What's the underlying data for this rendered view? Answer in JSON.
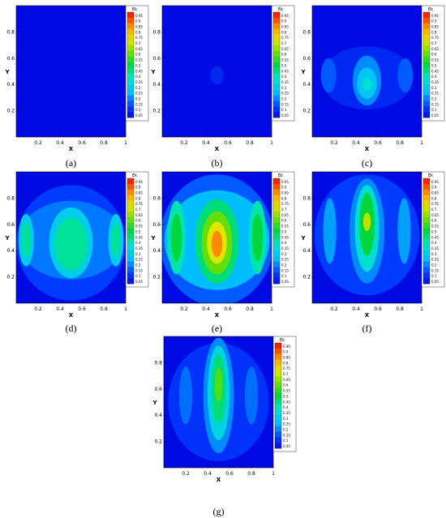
{
  "chart_data": [
    {
      "type": "heatmap",
      "caption": "(a)",
      "xlabel": "X",
      "ylabel": "Y",
      "xticks": [
        "0.2",
        "0.4",
        "0.6",
        "0.8",
        "1"
      ],
      "yticks": [
        "0.2",
        "0.4",
        "0.6",
        "0.8"
      ],
      "xlim": [
        0,
        1
      ],
      "ylim": [
        0,
        1
      ],
      "legend_title": "Ek",
      "legend_placement": "right",
      "levels": [
        "0.95",
        "0.9",
        "0.85",
        "0.8",
        "0.75",
        "0.7",
        "0.65",
        "0.6",
        "0.55",
        "0.5",
        "0.45",
        "0.4",
        "0.35",
        "0.3",
        "0.25",
        "0.2",
        "0.15",
        "0.1",
        "0.05"
      ],
      "blobs": []
    },
    {
      "type": "heatmap",
      "caption": "(b)",
      "xlabel": "X",
      "ylabel": "Y",
      "xticks": [
        "0.2",
        "0.4",
        "0.6",
        "0.8",
        "1"
      ],
      "yticks": [
        "0.2",
        "0.4",
        "0.6",
        "0.8"
      ],
      "xlim": [
        0,
        1
      ],
      "ylim": [
        0,
        1
      ],
      "legend_title": "Ek",
      "legend_placement": "right",
      "levels": [
        "0.95",
        "0.9",
        "0.85",
        "0.8",
        "0.75",
        "0.7",
        "0.65",
        "0.6",
        "0.55",
        "0.5",
        "0.45",
        "0.4",
        "0.35",
        "0.3",
        "0.25",
        "0.2",
        "0.15",
        "0.1",
        "0.05"
      ],
      "blobs": [
        {
          "x": 0.5,
          "y": 0.47,
          "rx": 0.06,
          "ry": 0.07,
          "level": 0.08
        }
      ]
    },
    {
      "type": "heatmap",
      "caption": "(c)",
      "xlabel": "X",
      "ylabel": "Y",
      "xticks": [
        "0.2",
        "0.4",
        "0.6",
        "0.8",
        "1"
      ],
      "yticks": [
        "0.2",
        "0.4",
        "0.6",
        "0.8"
      ],
      "xlim": [
        0,
        1
      ],
      "ylim": [
        0,
        1
      ],
      "legend_title": "Ek",
      "legend_placement": "right",
      "levels": [
        "0.95",
        "0.9",
        "0.85",
        "0.8",
        "0.75",
        "0.7",
        "0.65",
        "0.6",
        "0.55",
        "0.5",
        "0.45",
        "0.4",
        "0.35",
        "0.3",
        "0.25",
        "0.2",
        "0.15",
        "0.1",
        "0.05"
      ],
      "blobs": [
        {
          "x": 0.5,
          "y": 0.45,
          "rx": 0.42,
          "ry": 0.24,
          "level": 0.08
        },
        {
          "x": 0.15,
          "y": 0.47,
          "rx": 0.07,
          "ry": 0.13,
          "level": 0.15
        },
        {
          "x": 0.85,
          "y": 0.47,
          "rx": 0.07,
          "ry": 0.13,
          "level": 0.15
        },
        {
          "x": 0.5,
          "y": 0.43,
          "rx": 0.13,
          "ry": 0.19,
          "level": 0.2
        },
        {
          "x": 0.5,
          "y": 0.41,
          "rx": 0.09,
          "ry": 0.12,
          "level": 0.28
        },
        {
          "x": 0.5,
          "y": 0.4,
          "rx": 0.04,
          "ry": 0.05,
          "level": 0.36
        }
      ]
    },
    {
      "type": "heatmap",
      "caption": "(d)",
      "xlabel": "X",
      "ylabel": "Y",
      "xticks": [
        "0.2",
        "0.4",
        "0.6",
        "0.8",
        "1"
      ],
      "yticks": [
        "0.2",
        "0.4",
        "0.6",
        "0.8"
      ],
      "xlim": [
        0,
        1
      ],
      "ylim": [
        0,
        1
      ],
      "legend_title": "Ek",
      "legend_placement": "right",
      "levels": [
        "0.95",
        "0.9",
        "0.85",
        "0.8",
        "0.75",
        "0.7",
        "0.65",
        "0.6",
        "0.55",
        "0.5",
        "0.45",
        "0.4",
        "0.35",
        "0.3",
        "0.25",
        "0.2",
        "0.15",
        "0.1",
        "0.05"
      ],
      "blobs": [
        {
          "x": 0.5,
          "y": 0.46,
          "rx": 0.5,
          "ry": 0.44,
          "level": 0.12
        },
        {
          "x": 0.5,
          "y": 0.48,
          "rx": 0.48,
          "ry": 0.3,
          "level": 0.18
        },
        {
          "x": 0.09,
          "y": 0.48,
          "rx": 0.07,
          "ry": 0.2,
          "level": 0.3
        },
        {
          "x": 0.91,
          "y": 0.48,
          "rx": 0.07,
          "ry": 0.2,
          "level": 0.3
        },
        {
          "x": 0.09,
          "y": 0.48,
          "rx": 0.04,
          "ry": 0.13,
          "level": 0.42
        },
        {
          "x": 0.91,
          "y": 0.48,
          "rx": 0.04,
          "ry": 0.13,
          "level": 0.42
        },
        {
          "x": 0.5,
          "y": 0.46,
          "rx": 0.2,
          "ry": 0.27,
          "level": 0.3
        },
        {
          "x": 0.5,
          "y": 0.45,
          "rx": 0.15,
          "ry": 0.2,
          "level": 0.42
        }
      ]
    },
    {
      "type": "heatmap",
      "caption": "(e)",
      "xlabel": "X",
      "ylabel": "Y",
      "xticks": [
        "0.2",
        "0.4",
        "0.6",
        "0.8",
        "1"
      ],
      "yticks": [
        "0.2",
        "0.4",
        "0.6",
        "0.8"
      ],
      "xlim": [
        0,
        1
      ],
      "ylim": [
        0,
        1
      ],
      "legend_title": "Ek",
      "legend_placement": "right",
      "levels": [
        "0.95",
        "0.9",
        "0.85",
        "0.8",
        "0.75",
        "0.7",
        "0.65",
        "0.6",
        "0.55",
        "0.5",
        "0.45",
        "0.4",
        "0.35",
        "0.3",
        "0.25",
        "0.2",
        "0.15",
        "0.1",
        "0.05"
      ],
      "blobs": [
        {
          "x": 0.5,
          "y": 0.48,
          "rx": 0.52,
          "ry": 0.5,
          "level": 0.15
        },
        {
          "x": 0.5,
          "y": 0.48,
          "rx": 0.48,
          "ry": 0.38,
          "level": 0.25
        },
        {
          "x": 0.13,
          "y": 0.5,
          "rx": 0.08,
          "ry": 0.28,
          "level": 0.4
        },
        {
          "x": 0.87,
          "y": 0.5,
          "rx": 0.08,
          "ry": 0.28,
          "level": 0.4
        },
        {
          "x": 0.13,
          "y": 0.5,
          "rx": 0.05,
          "ry": 0.18,
          "level": 0.5
        },
        {
          "x": 0.87,
          "y": 0.5,
          "rx": 0.05,
          "ry": 0.18,
          "level": 0.5
        },
        {
          "x": 0.5,
          "y": 0.47,
          "rx": 0.2,
          "ry": 0.32,
          "level": 0.45
        },
        {
          "x": 0.5,
          "y": 0.46,
          "rx": 0.14,
          "ry": 0.24,
          "level": 0.6
        },
        {
          "x": 0.5,
          "y": 0.46,
          "rx": 0.09,
          "ry": 0.16,
          "level": 0.72
        },
        {
          "x": 0.5,
          "y": 0.45,
          "rx": 0.05,
          "ry": 0.1,
          "level": 0.85
        }
      ]
    },
    {
      "type": "heatmap",
      "caption": "(f)",
      "xlabel": "X",
      "ylabel": "Y",
      "xticks": [
        "0.2",
        "0.4",
        "0.6",
        "0.8",
        "1"
      ],
      "yticks": [
        "0.2",
        "0.4",
        "0.6",
        "0.8"
      ],
      "xlim": [
        0,
        1
      ],
      "ylim": [
        0,
        1
      ],
      "legend_title": "Ek",
      "legend_placement": "right",
      "levels": [
        "0.95",
        "0.9",
        "0.85",
        "0.8",
        "0.75",
        "0.7",
        "0.65",
        "0.6",
        "0.55",
        "0.5",
        "0.45",
        "0.4",
        "0.35",
        "0.3",
        "0.25",
        "0.2",
        "0.15",
        "0.1",
        "0.05"
      ],
      "blobs": [
        {
          "x": 0.5,
          "y": 0.52,
          "rx": 0.48,
          "ry": 0.46,
          "level": 0.12
        },
        {
          "x": 0.16,
          "y": 0.55,
          "rx": 0.06,
          "ry": 0.25,
          "level": 0.22
        },
        {
          "x": 0.84,
          "y": 0.55,
          "rx": 0.06,
          "ry": 0.25,
          "level": 0.22
        },
        {
          "x": 0.5,
          "y": 0.55,
          "rx": 0.16,
          "ry": 0.4,
          "level": 0.2
        },
        {
          "x": 0.5,
          "y": 0.57,
          "rx": 0.11,
          "ry": 0.33,
          "level": 0.35
        },
        {
          "x": 0.5,
          "y": 0.6,
          "rx": 0.07,
          "ry": 0.24,
          "level": 0.5
        },
        {
          "x": 0.5,
          "y": 0.62,
          "rx": 0.035,
          "ry": 0.07,
          "level": 0.68
        }
      ]
    },
    {
      "type": "heatmap",
      "caption": "(g)",
      "xlabel": "X",
      "ylabel": "Y",
      "xticks": [
        "0.2",
        "0.4",
        "0.6",
        "0.8",
        "1"
      ],
      "yticks": [
        "0.2",
        "0.4",
        "0.6",
        "0.8"
      ],
      "xlim": [
        0,
        1
      ],
      "ylim": [
        0,
        1
      ],
      "legend_title": "Ek",
      "legend_placement": "right",
      "levels": [
        "0.95",
        "0.9",
        "0.85",
        "0.8",
        "0.75",
        "0.7",
        "0.65",
        "0.6",
        "0.55",
        "0.5",
        "0.45",
        "0.4",
        "0.35",
        "0.3",
        "0.25",
        "0.2",
        "0.15",
        "0.1",
        "0.05"
      ],
      "blobs": [
        {
          "x": 0.5,
          "y": 0.5,
          "rx": 0.46,
          "ry": 0.45,
          "level": 0.1
        },
        {
          "x": 0.2,
          "y": 0.55,
          "rx": 0.06,
          "ry": 0.22,
          "level": 0.17
        },
        {
          "x": 0.8,
          "y": 0.55,
          "rx": 0.06,
          "ry": 0.22,
          "level": 0.17
        },
        {
          "x": 0.5,
          "y": 0.55,
          "rx": 0.14,
          "ry": 0.44,
          "level": 0.2
        },
        {
          "x": 0.5,
          "y": 0.57,
          "rx": 0.1,
          "ry": 0.36,
          "level": 0.32
        },
        {
          "x": 0.5,
          "y": 0.6,
          "rx": 0.065,
          "ry": 0.26,
          "level": 0.45
        },
        {
          "x": 0.5,
          "y": 0.63,
          "rx": 0.035,
          "ry": 0.13,
          "level": 0.58
        }
      ]
    }
  ]
}
